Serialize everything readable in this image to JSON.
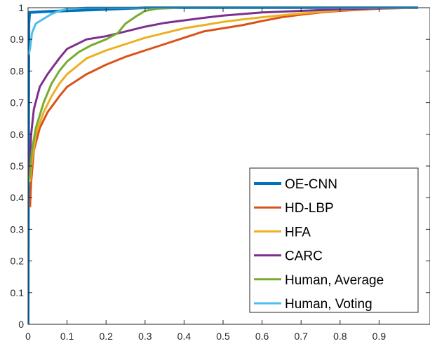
{
  "chart_data": {
    "type": "line",
    "title": "",
    "xlabel": "",
    "ylabel": "",
    "xlim": [
      0,
      1
    ],
    "ylim": [
      0,
      1
    ],
    "xticks": [
      "0",
      "0.1",
      "0.2",
      "0.3",
      "0.4",
      "0.5",
      "0.6",
      "0.7",
      "0.8",
      "0.9"
    ],
    "yticks": [
      "0",
      "0.1",
      "0.2",
      "0.3",
      "0.4",
      "0.5",
      "0.6",
      "0.7",
      "0.8",
      "0.9",
      "1"
    ],
    "grid": false,
    "legend_position": "bottom-right",
    "series": [
      {
        "name": "OE-CNN",
        "color": "#0072BD",
        "points": [
          [
            0,
            0
          ],
          [
            0.001,
            0.5
          ],
          [
            0.002,
            0.95
          ],
          [
            0.004,
            0.985
          ],
          [
            0.05,
            0.988
          ],
          [
            0.2,
            0.995
          ],
          [
            0.3,
            1
          ],
          [
            1,
            1
          ]
        ]
      },
      {
        "name": "HD-LBP",
        "color": "#D95319",
        "points": [
          [
            0.005,
            0.37
          ],
          [
            0.008,
            0.45
          ],
          [
            0.015,
            0.55
          ],
          [
            0.03,
            0.62
          ],
          [
            0.05,
            0.67
          ],
          [
            0.08,
            0.72
          ],
          [
            0.1,
            0.75
          ],
          [
            0.15,
            0.79
          ],
          [
            0.2,
            0.82
          ],
          [
            0.25,
            0.845
          ],
          [
            0.3,
            0.865
          ],
          [
            0.35,
            0.885
          ],
          [
            0.4,
            0.905
          ],
          [
            0.45,
            0.925
          ],
          [
            0.5,
            0.935
          ],
          [
            0.55,
            0.945
          ],
          [
            0.6,
            0.958
          ],
          [
            0.65,
            0.97
          ],
          [
            0.7,
            0.978
          ],
          [
            0.75,
            0.985
          ],
          [
            0.8,
            0.99
          ],
          [
            0.9,
            0.997
          ],
          [
            1,
            1
          ]
        ]
      },
      {
        "name": "HFA",
        "color": "#EDB120",
        "points": [
          [
            0.005,
            0.45
          ],
          [
            0.01,
            0.52
          ],
          [
            0.02,
            0.6
          ],
          [
            0.04,
            0.67
          ],
          [
            0.06,
            0.72
          ],
          [
            0.08,
            0.76
          ],
          [
            0.1,
            0.79
          ],
          [
            0.15,
            0.84
          ],
          [
            0.2,
            0.865
          ],
          [
            0.25,
            0.885
          ],
          [
            0.3,
            0.905
          ],
          [
            0.35,
            0.92
          ],
          [
            0.4,
            0.935
          ],
          [
            0.45,
            0.945
          ],
          [
            0.5,
            0.955
          ],
          [
            0.55,
            0.963
          ],
          [
            0.6,
            0.97
          ],
          [
            0.7,
            0.982
          ],
          [
            0.8,
            0.992
          ],
          [
            0.9,
            0.998
          ],
          [
            1,
            1
          ]
        ]
      },
      {
        "name": "CARC",
        "color": "#7E2F8E",
        "points": [
          [
            0.003,
            0.47
          ],
          [
            0.008,
            0.6
          ],
          [
            0.015,
            0.68
          ],
          [
            0.03,
            0.75
          ],
          [
            0.05,
            0.79
          ],
          [
            0.08,
            0.84
          ],
          [
            0.1,
            0.87
          ],
          [
            0.15,
            0.9
          ],
          [
            0.2,
            0.91
          ],
          [
            0.25,
            0.925
          ],
          [
            0.3,
            0.94
          ],
          [
            0.35,
            0.952
          ],
          [
            0.4,
            0.96
          ],
          [
            0.45,
            0.968
          ],
          [
            0.5,
            0.975
          ],
          [
            0.6,
            0.985
          ],
          [
            0.7,
            0.99
          ],
          [
            0.8,
            0.995
          ],
          [
            0.9,
            0.998
          ],
          [
            1,
            1
          ]
        ]
      },
      {
        "name": "Human, Average",
        "color": "#77AC30",
        "points": [
          [
            0.004,
            0.46
          ],
          [
            0.01,
            0.55
          ],
          [
            0.02,
            0.62
          ],
          [
            0.04,
            0.7
          ],
          [
            0.06,
            0.76
          ],
          [
            0.08,
            0.8
          ],
          [
            0.1,
            0.83
          ],
          [
            0.13,
            0.86
          ],
          [
            0.16,
            0.88
          ],
          [
            0.2,
            0.9
          ],
          [
            0.23,
            0.92
          ],
          [
            0.25,
            0.95
          ],
          [
            0.28,
            0.975
          ],
          [
            0.3,
            0.99
          ],
          [
            0.33,
            0.997
          ],
          [
            0.4,
            1
          ],
          [
            1,
            1
          ]
        ]
      },
      {
        "name": "Human, Voting",
        "color": "#4DBEEE",
        "points": [
          [
            0.001,
            0.85
          ],
          [
            0.005,
            0.87
          ],
          [
            0.01,
            0.92
          ],
          [
            0.02,
            0.95
          ],
          [
            0.04,
            0.965
          ],
          [
            0.06,
            0.98
          ],
          [
            0.08,
            0.99
          ],
          [
            0.1,
            0.996
          ],
          [
            0.15,
            1
          ],
          [
            1,
            1
          ]
        ]
      }
    ]
  }
}
